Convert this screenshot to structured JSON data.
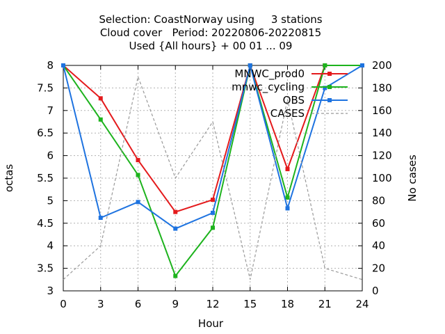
{
  "chart_data": {
    "type": "line",
    "title_lines": [
      "Selection: CoastNorway using     3 stations",
      "Cloud cover   Period: 20220806-20220815",
      "Used {All hours} + 00 01 ... 09"
    ],
    "xlabel": "Hour",
    "ylabel": "octas",
    "y2label": "No cases",
    "x": [
      0,
      3,
      6,
      9,
      12,
      15,
      18,
      21,
      24
    ],
    "x_ticks": [
      "0",
      "3",
      "6",
      "9",
      "12",
      "15",
      "18",
      "21",
      "24"
    ],
    "xlim": [
      0,
      24
    ],
    "ylim": [
      3,
      8
    ],
    "y_ticks": [
      "3",
      "3.5",
      "4",
      "4.5",
      "5",
      "5.5",
      "6",
      "6.5",
      "7",
      "7.5",
      "8"
    ],
    "y2lim": [
      0,
      200
    ],
    "y2_ticks": [
      "0",
      "20",
      "40",
      "60",
      "80",
      "100",
      "120",
      "140",
      "160",
      "180",
      "200"
    ],
    "grid": true,
    "legend_position": "top-right",
    "series": [
      {
        "name": "MNWC_prod0",
        "color": "#e41a1c",
        "axis": "left",
        "style": "solid-marker",
        "values": [
          8.0,
          7.27,
          5.9,
          4.75,
          5.02,
          8.0,
          5.7,
          8.0,
          8.0
        ]
      },
      {
        "name": "mnwc_cycling",
        "color": "#1db31d",
        "axis": "left",
        "style": "solid-marker",
        "values": [
          8.0,
          6.8,
          5.57,
          3.33,
          4.4,
          8.0,
          5.07,
          8.0,
          8.0
        ]
      },
      {
        "name": "OBS",
        "color": "#1e73e0",
        "axis": "left",
        "style": "solid-marker",
        "values": [
          8.0,
          4.62,
          4.97,
          4.38,
          4.73,
          8.0,
          4.83,
          7.5,
          8.0
        ]
      },
      {
        "name": "CASES",
        "color": "#999999",
        "axis": "right",
        "style": "dashed",
        "values": [
          10,
          40,
          190,
          100,
          150,
          10,
          170,
          20,
          10
        ]
      }
    ]
  }
}
